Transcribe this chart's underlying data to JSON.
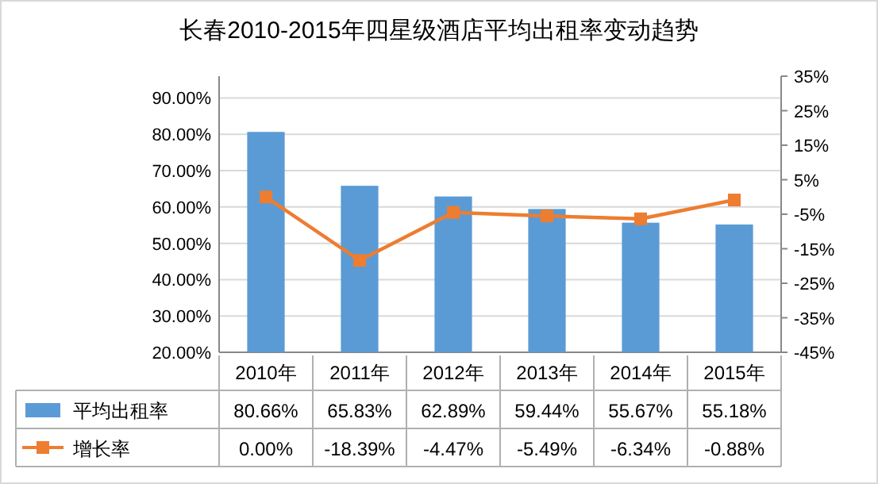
{
  "chart_data": {
    "type": "bar",
    "title": "长春2010-2015年四星级酒店平均出租率变动趋势",
    "categories": [
      "2010年",
      "2011年",
      "2012年",
      "2013年",
      "2014年",
      "2015年"
    ],
    "series": [
      {
        "name": "平均出租率",
        "type": "bar",
        "color": "#5b9bd5",
        "values": [
          80.66,
          65.83,
          62.89,
          59.44,
          55.67,
          55.18
        ],
        "value_labels": [
          "80.66%",
          "65.83%",
          "62.89%",
          "59.44%",
          "55.67%",
          "55.18%"
        ]
      },
      {
        "name": "增长率",
        "type": "line",
        "axis": "y2",
        "color": "#ed7d31",
        "marker": "square",
        "values": [
          0.0,
          -18.39,
          -4.47,
          -5.49,
          -6.34,
          -0.88
        ],
        "value_labels": [
          "0.00%",
          "-18.39%",
          "-4.47%",
          "-5.49%",
          "-6.34%",
          "-0.88%"
        ]
      }
    ],
    "ylim": [
      20,
      96
    ],
    "yticks": [
      {
        "value": 20,
        "label": "20.00%"
      },
      {
        "value": 30,
        "label": "30.00%"
      },
      {
        "value": 40,
        "label": "40.00%"
      },
      {
        "value": 50,
        "label": "50.00%"
      },
      {
        "value": 60,
        "label": "60.00%"
      },
      {
        "value": 70,
        "label": "70.00%"
      },
      {
        "value": 80,
        "label": "80.00%"
      },
      {
        "value": 90,
        "label": "90.00%"
      }
    ],
    "y2lim": [
      -45,
      35
    ],
    "y2ticks": [
      {
        "value": -45,
        "label": "-45%"
      },
      {
        "value": -35,
        "label": "-35%"
      },
      {
        "value": -25,
        "label": "-25%"
      },
      {
        "value": -15,
        "label": "-15%"
      },
      {
        "value": -5,
        "label": "-5%"
      },
      {
        "value": 5,
        "label": "5%"
      },
      {
        "value": 15,
        "label": "15%"
      },
      {
        "value": 25,
        "label": "25%"
      },
      {
        "value": 35,
        "label": "35%"
      }
    ],
    "grid": "y",
    "legend": "bottom"
  }
}
